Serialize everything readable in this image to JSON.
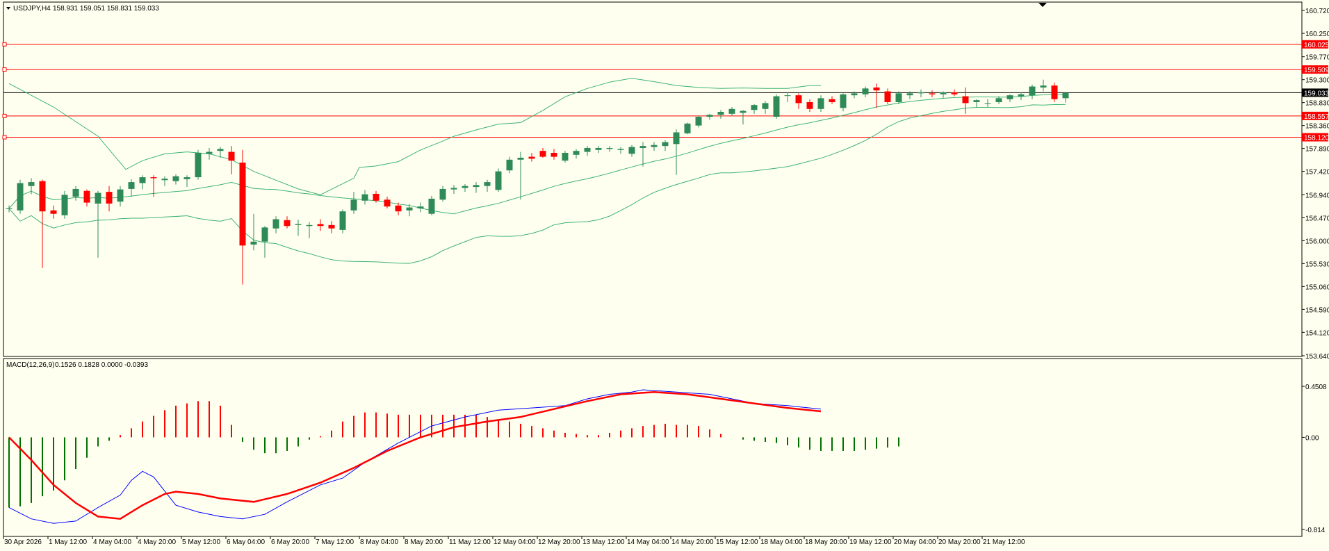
{
  "header": {
    "symbol": "USDJPY,H4",
    "ohlc": "158.931 159.051 158.831 159.033"
  },
  "macd_header": {
    "title": "MACD(12,26,9)",
    "values": "0.1526 0.1828 0.0000 -0.0393"
  },
  "colors": {
    "background": "#fffff0",
    "bull": "#2e8b57",
    "bear": "#ff0000",
    "band": "#3cb371",
    "level_line": "#ff0000",
    "price_line": "#000000",
    "macd_main": "#0000ff",
    "macd_signal": "#ff0000"
  },
  "chart_data": [
    {
      "type": "candlestick",
      "title": "USDJPY,H4",
      "ylim": [
        153.64,
        160.72
      ],
      "y_ticks": [
        160.72,
        160.25,
        159.77,
        159.3,
        158.83,
        158.36,
        157.89,
        157.42,
        156.94,
        156.47,
        156.0,
        155.53,
        155.06,
        154.59,
        154.12,
        153.64
      ],
      "y_tick_labels": [
        "160.720",
        "160.250",
        "159.770",
        "159.300",
        "158.830",
        "158.360",
        "157.890",
        "157.420",
        "156.940",
        "156.470",
        "156.000",
        "155.530",
        "155.060",
        "154.590",
        "154.120",
        "153.640"
      ],
      "levels": [
        {
          "price": 160.025,
          "label": "160.025",
          "color": "#ff0000"
        },
        {
          "price": 159.509,
          "label": "159.509",
          "color": "#ff0000"
        },
        {
          "price": 158.557,
          "label": "158.557",
          "color": "#ff0000"
        },
        {
          "price": 158.12,
          "label": "158.120",
          "color": "#ff0000"
        }
      ],
      "current_price": {
        "price": 159.033,
        "label": "159.033"
      },
      "x_labels": [
        "30 Apr 2026",
        "1 May 12:00",
        "4 May 04:00",
        "4 May 20:00",
        "5 May 12:00",
        "6 May 04:00",
        "6 May 20:00",
        "7 May 12:00",
        "8 May 04:00",
        "8 May 20:00",
        "11 May 12:00",
        "12 May 04:00",
        "12 May 20:00",
        "13 May 12:00",
        "14 May 04:00",
        "14 May 20:00",
        "15 May 12:00",
        "18 May 04:00",
        "18 May 20:00",
        "19 May 12:00",
        "20 May 04:00",
        "20 May 20:00",
        "21 May 12:00"
      ],
      "x_label_bars": [
        0,
        4,
        8,
        12,
        16,
        20,
        24,
        28,
        32,
        36,
        40,
        44,
        48,
        52,
        56,
        60,
        64,
        68,
        72,
        76,
        80,
        84,
        88
      ],
      "candles": [
        [
          156.65,
          156.72,
          156.58,
          156.66
        ],
        [
          156.62,
          157.25,
          156.55,
          157.18
        ],
        [
          157.12,
          157.28,
          156.95,
          157.2
        ],
        [
          157.22,
          157.25,
          155.44,
          156.6
        ],
        [
          156.62,
          156.72,
          156.45,
          156.55
        ],
        [
          156.52,
          157.02,
          156.45,
          156.94
        ],
        [
          156.9,
          157.12,
          156.82,
          157.06
        ],
        [
          157.02,
          157.05,
          156.7,
          156.78
        ],
        [
          156.76,
          157.02,
          155.65,
          156.98
        ],
        [
          157.0,
          157.12,
          156.6,
          156.76
        ],
        [
          156.8,
          157.12,
          156.7,
          157.05
        ],
        [
          157.06,
          157.26,
          156.9,
          157.2
        ],
        [
          157.18,
          157.34,
          157.05,
          157.3
        ],
        [
          157.3,
          157.34,
          156.9,
          157.28
        ],
        [
          157.24,
          157.32,
          157.12,
          157.27
        ],
        [
          157.22,
          157.36,
          157.15,
          157.32
        ],
        [
          157.26,
          157.34,
          157.1,
          157.3
        ],
        [
          157.3,
          157.86,
          157.25,
          157.8
        ],
        [
          157.78,
          157.9,
          157.66,
          157.82
        ],
        [
          157.84,
          157.92,
          157.7,
          157.88
        ],
        [
          157.82,
          157.94,
          157.36,
          157.64
        ],
        [
          157.6,
          157.86,
          155.1,
          155.9
        ],
        [
          155.92,
          156.55,
          155.8,
          155.98
        ],
        [
          155.98,
          156.3,
          155.65,
          156.27
        ],
        [
          156.25,
          156.5,
          156.15,
          156.44
        ],
        [
          156.42,
          156.5,
          156.25,
          156.3
        ],
        [
          156.32,
          156.43,
          156.1,
          156.34
        ],
        [
          156.3,
          156.38,
          156.05,
          156.32
        ],
        [
          156.34,
          156.44,
          156.2,
          156.3
        ],
        [
          156.32,
          156.4,
          156.15,
          156.25
        ],
        [
          156.22,
          156.64,
          156.15,
          156.6
        ],
        [
          156.62,
          157.0,
          156.55,
          156.84
        ],
        [
          156.82,
          157.04,
          156.74,
          156.95
        ],
        [
          156.96,
          157.02,
          156.78,
          156.82
        ],
        [
          156.84,
          156.9,
          156.66,
          156.7
        ],
        [
          156.72,
          156.78,
          156.52,
          156.6
        ],
        [
          156.62,
          156.75,
          156.5,
          156.68
        ],
        [
          156.66,
          156.78,
          156.58,
          156.7
        ],
        [
          156.55,
          156.92,
          156.52,
          156.86
        ],
        [
          156.84,
          157.12,
          156.8,
          157.06
        ],
        [
          157.05,
          157.14,
          156.96,
          157.08
        ],
        [
          157.08,
          157.16,
          157.0,
          157.12
        ],
        [
          157.1,
          157.2,
          156.98,
          157.14
        ],
        [
          157.12,
          157.25,
          157.0,
          157.2
        ],
        [
          157.04,
          157.48,
          157.0,
          157.42
        ],
        [
          157.44,
          157.72,
          157.38,
          157.66
        ],
        [
          157.66,
          157.82,
          156.84,
          157.7
        ],
        [
          157.72,
          157.8,
          157.62,
          157.68
        ],
        [
          157.84,
          157.9,
          157.7,
          157.72
        ],
        [
          157.8,
          157.88,
          157.66,
          157.72
        ],
        [
          157.64,
          157.84,
          157.6,
          157.8
        ],
        [
          157.76,
          157.88,
          157.68,
          157.84
        ],
        [
          157.82,
          157.94,
          157.74,
          157.9
        ],
        [
          157.86,
          157.94,
          157.8,
          157.9
        ],
        [
          157.88,
          157.94,
          157.82,
          157.9
        ],
        [
          157.86,
          157.92,
          157.78,
          157.88
        ],
        [
          157.78,
          157.96,
          157.72,
          157.92
        ],
        [
          157.9,
          158.02,
          157.52,
          157.94
        ],
        [
          157.92,
          158.02,
          157.84,
          157.96
        ],
        [
          157.94,
          158.06,
          157.84,
          158.02
        ],
        [
          157.98,
          158.28,
          157.35,
          158.22
        ],
        [
          158.2,
          158.42,
          158.18,
          158.4
        ],
        [
          158.36,
          158.56,
          158.32,
          158.54
        ],
        [
          158.54,
          158.6,
          158.48,
          158.58
        ],
        [
          158.58,
          158.68,
          158.5,
          158.64
        ],
        [
          158.6,
          158.74,
          158.55,
          158.7
        ],
        [
          158.62,
          158.68,
          158.38,
          158.66
        ],
        [
          158.68,
          158.8,
          158.6,
          158.78
        ],
        [
          158.7,
          158.86,
          158.6,
          158.82
        ],
        [
          158.54,
          159.0,
          158.5,
          158.96
        ],
        [
          158.98,
          159.04,
          158.84,
          158.98
        ],
        [
          158.98,
          159.02,
          158.7,
          158.82
        ],
        [
          158.84,
          158.9,
          158.64,
          158.7
        ],
        [
          158.7,
          158.98,
          158.64,
          158.92
        ],
        [
          158.9,
          158.96,
          158.8,
          158.84
        ],
        [
          158.72,
          159.02,
          158.65,
          159.0
        ],
        [
          158.98,
          159.06,
          158.92,
          159.02
        ],
        [
          159.0,
          159.16,
          158.94,
          159.12
        ],
        [
          159.14,
          159.22,
          158.72,
          159.08
        ],
        [
          159.06,
          159.12,
          158.8,
          158.84
        ],
        [
          158.84,
          159.06,
          158.8,
          159.02
        ],
        [
          158.98,
          159.06,
          158.9,
          159.02
        ],
        [
          159.02,
          159.1,
          158.94,
          159.04
        ],
        [
          159.02,
          159.08,
          158.94,
          159.0
        ],
        [
          159.0,
          159.06,
          158.92,
          159.04
        ],
        [
          159.04,
          159.1,
          158.96,
          159.0
        ],
        [
          158.96,
          159.14,
          158.6,
          158.82
        ],
        [
          158.84,
          158.9,
          158.74,
          158.88
        ],
        [
          158.82,
          158.9,
          158.74,
          158.82
        ],
        [
          158.84,
          158.96,
          158.8,
          158.92
        ],
        [
          158.9,
          159.0,
          158.84,
          158.98
        ],
        [
          158.96,
          159.04,
          158.88,
          159.0
        ],
        [
          158.98,
          159.2,
          158.9,
          159.16
        ],
        [
          159.14,
          159.3,
          159.06,
          159.18
        ],
        [
          159.18,
          159.24,
          158.84,
          158.9
        ],
        [
          158.92,
          159.05,
          158.83,
          159.03
        ]
      ],
      "bollinger": {
        "upper": [
          [
            0,
            159.22
          ],
          [
            8,
            158.74
          ],
          [
            16,
            158.14
          ],
          [
            21,
            157.46
          ],
          [
            24,
            157.64
          ],
          [
            28,
            157.78
          ],
          [
            32,
            157.82
          ],
          [
            36,
            157.78
          ],
          [
            40,
            157.66
          ],
          [
            44,
            157.42
          ],
          [
            48,
            157.24
          ],
          [
            52,
            157.06
          ],
          [
            56,
            156.94
          ],
          [
            62,
            157.28
          ],
          [
            63,
            157.5
          ],
          [
            66,
            157.53
          ],
          [
            70,
            157.62
          ],
          [
            74,
            157.86
          ],
          [
            78,
            158.04
          ],
          [
            80,
            158.14
          ],
          [
            84,
            158.27
          ],
          [
            88,
            158.39
          ],
          [
            92,
            158.42
          ],
          [
            96,
            158.67
          ],
          [
            100,
            158.95
          ],
          [
            104,
            159.12
          ],
          [
            108,
            159.25
          ],
          [
            112,
            159.33
          ],
          [
            116,
            159.26
          ],
          [
            120,
            159.18
          ],
          [
            124,
            159.14
          ],
          [
            128,
            159.12
          ],
          [
            132,
            159.13
          ],
          [
            136,
            159.12
          ],
          [
            140,
            159.12
          ],
          [
            144,
            159.18
          ],
          [
            146,
            159.18
          ]
        ]
      }
    },
    {
      "type": "macd",
      "title": "MACD(12,26,9)",
      "ylim": [
        -0.814,
        0.4508
      ],
      "y_tick_labels": [
        "0.4508",
        "0.00",
        "-0.814"
      ],
      "histogram": [
        -0.62,
        -0.61,
        -0.58,
        -0.52,
        -0.47,
        -0.38,
        -0.28,
        -0.18,
        -0.08,
        -0.03,
        0.02,
        0.08,
        0.14,
        0.19,
        0.24,
        0.28,
        0.3,
        0.32,
        0.32,
        0.28,
        0.11,
        -0.04,
        -0.11,
        -0.14,
        -0.14,
        -0.12,
        -0.08,
        -0.02,
        0.01,
        0.06,
        0.14,
        0.19,
        0.22,
        0.22,
        0.21,
        0.2,
        0.2,
        0.2,
        0.2,
        0.2,
        0.2,
        0.2,
        0.2,
        0.18,
        0.16,
        0.14,
        0.12,
        0.1,
        0.08,
        0.06,
        0.04,
        0.03,
        0.02,
        0.02,
        0.04,
        0.06,
        0.08,
        0.1,
        0.11,
        0.12,
        0.11,
        0.11,
        0.1,
        0.07,
        0.03,
        0.0,
        -0.02,
        -0.03,
        -0.04,
        -0.05,
        -0.07,
        -0.09,
        -0.11,
        -0.12,
        -0.12,
        -0.12,
        -0.12,
        -0.11,
        -0.1,
        -0.09,
        -0.08
      ],
      "main": [
        [
          0,
          -0.62
        ],
        [
          4,
          -0.72
        ],
        [
          8,
          -0.76
        ],
        [
          12,
          -0.74
        ],
        [
          16,
          -0.62
        ],
        [
          20,
          -0.51
        ],
        [
          22,
          -0.38
        ],
        [
          24,
          -0.3
        ],
        [
          26,
          -0.35
        ],
        [
          30,
          -0.6
        ],
        [
          34,
          -0.66
        ],
        [
          38,
          -0.7
        ],
        [
          42,
          -0.72
        ],
        [
          46,
          -0.68
        ],
        [
          50,
          -0.57
        ],
        [
          56,
          -0.42
        ],
        [
          60,
          -0.36
        ],
        [
          64,
          -0.22
        ],
        [
          70,
          -0.05
        ],
        [
          76,
          0.1
        ],
        [
          82,
          0.18
        ],
        [
          88,
          0.24
        ],
        [
          94,
          0.26
        ],
        [
          100,
          0.28
        ],
        [
          104,
          0.34
        ],
        [
          108,
          0.38
        ],
        [
          112,
          0.4
        ],
        [
          114,
          0.42
        ],
        [
          120,
          0.4
        ],
        [
          126,
          0.38
        ],
        [
          130,
          0.34
        ],
        [
          134,
          0.3
        ],
        [
          140,
          0.28
        ],
        [
          144,
          0.26
        ],
        [
          146,
          0.25
        ]
      ],
      "signal": [
        [
          0,
          0.0
        ],
        [
          4,
          -0.2
        ],
        [
          8,
          -0.42
        ],
        [
          12,
          -0.58
        ],
        [
          16,
          -0.7
        ],
        [
          20,
          -0.72
        ],
        [
          24,
          -0.6
        ],
        [
          28,
          -0.5
        ],
        [
          30,
          -0.48
        ],
        [
          34,
          -0.5
        ],
        [
          38,
          -0.54
        ],
        [
          44,
          -0.57
        ],
        [
          50,
          -0.5
        ],
        [
          56,
          -0.4
        ],
        [
          62,
          -0.27
        ],
        [
          68,
          -0.12
        ],
        [
          74,
          0.0
        ],
        [
          80,
          0.09
        ],
        [
          86,
          0.14
        ],
        [
          92,
          0.18
        ],
        [
          98,
          0.25
        ],
        [
          104,
          0.32
        ],
        [
          110,
          0.38
        ],
        [
          116,
          0.4
        ],
        [
          122,
          0.38
        ],
        [
          128,
          0.34
        ],
        [
          134,
          0.3
        ],
        [
          140,
          0.26
        ],
        [
          146,
          0.23
        ]
      ]
    }
  ]
}
